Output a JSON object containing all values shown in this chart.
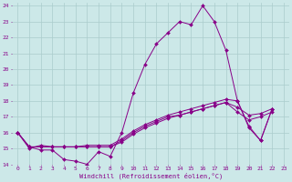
{
  "xlabel": "Windchill (Refroidissement éolien,°C)",
  "background_color": "#cce8e8",
  "grid_color": "#aacccc",
  "line_color": "#880088",
  "xlim": [
    -0.5,
    23.5
  ],
  "ylim": [
    14,
    24.2
  ],
  "yticks": [
    14,
    15,
    16,
    17,
    18,
    19,
    20,
    21,
    22,
    23,
    24
  ],
  "xticks": [
    0,
    1,
    2,
    3,
    4,
    5,
    6,
    7,
    8,
    9,
    10,
    11,
    12,
    13,
    14,
    15,
    16,
    17,
    18,
    19,
    20,
    21,
    22,
    23
  ],
  "line1_x": [
    0,
    1,
    2,
    3,
    4,
    5,
    6,
    7,
    8,
    9,
    10,
    11,
    12,
    13,
    14,
    15,
    16,
    17,
    18,
    19,
    20,
    21,
    22
  ],
  "line1_y": [
    16.0,
    15.1,
    14.9,
    14.9,
    14.3,
    14.2,
    14.0,
    14.8,
    14.5,
    16.0,
    18.5,
    20.3,
    21.6,
    22.3,
    23.0,
    22.8,
    24.0,
    23.0,
    21.2,
    18.0,
    16.3,
    15.5,
    17.5
  ],
  "line2_x": [
    0,
    1,
    2,
    3,
    4,
    5,
    6,
    7,
    8,
    9,
    10,
    11,
    12,
    13,
    14,
    15,
    16,
    17,
    18,
    19,
    20,
    21,
    22,
    23
  ],
  "line2_y": [
    16.0,
    15.0,
    15.2,
    15.1,
    15.1,
    15.1,
    15.2,
    15.2,
    15.2,
    15.6,
    16.1,
    16.5,
    16.8,
    17.1,
    17.3,
    17.5,
    17.7,
    17.9,
    18.1,
    18.0,
    16.4,
    15.5,
    17.5,
    null
  ],
  "line3_x": [
    0,
    1,
    2,
    3,
    4,
    5,
    6,
    7,
    8,
    9,
    10,
    11,
    12,
    13,
    14,
    15,
    16,
    17,
    18,
    19,
    20,
    21,
    22,
    23
  ],
  "line3_y": [
    16.0,
    15.1,
    15.1,
    15.1,
    15.1,
    15.1,
    15.1,
    15.1,
    15.1,
    15.4,
    15.9,
    16.3,
    16.6,
    16.9,
    17.1,
    17.3,
    17.5,
    17.7,
    17.9,
    17.6,
    17.1,
    17.2,
    17.5,
    null
  ],
  "line4_x": [
    0,
    1,
    2,
    3,
    4,
    5,
    6,
    7,
    8,
    9,
    10,
    11,
    12,
    13,
    14,
    15,
    16,
    17,
    18,
    19,
    20,
    21,
    22,
    23
  ],
  "line4_y": [
    16.0,
    15.1,
    15.1,
    15.1,
    15.1,
    15.1,
    15.1,
    15.1,
    15.1,
    15.5,
    16.0,
    16.4,
    16.7,
    17.0,
    17.1,
    17.3,
    17.5,
    17.7,
    17.9,
    17.3,
    16.8,
    17.0,
    17.3,
    null
  ]
}
